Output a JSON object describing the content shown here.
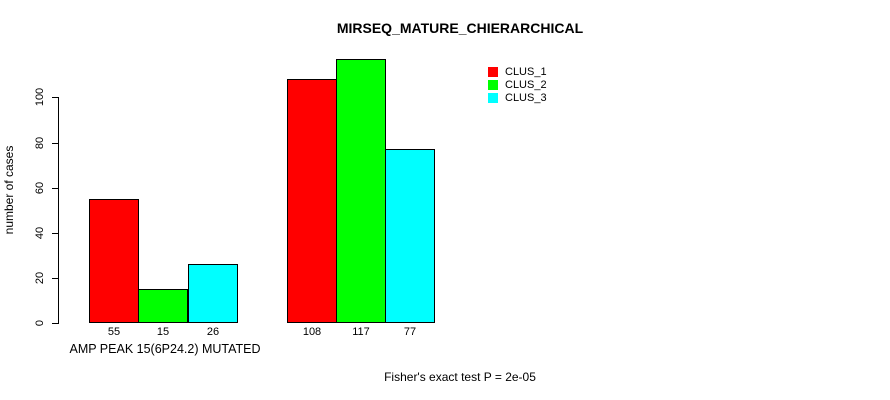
{
  "chart_data": {
    "type": "bar",
    "title": "MIRSEQ_MATURE_CHIERARCHICAL",
    "ylabel": "number of cases",
    "xlabel": "AMP PEAK 15(6P24.2) MUTATED",
    "ylim": [
      0,
      100
    ],
    "yticks": [
      0,
      20,
      40,
      60,
      80,
      100
    ],
    "grid": false,
    "legend_position": "top-right",
    "n_groups": 2,
    "series": [
      {
        "name": "CLUS_1",
        "color": "#ff0000",
        "values": [
          55,
          108
        ]
      },
      {
        "name": "CLUS_2",
        "color": "#00ff00",
        "values": [
          15,
          117
        ]
      },
      {
        "name": "CLUS_3",
        "color": "#00ffff",
        "values": [
          26,
          77
        ]
      }
    ],
    "bar_value_labels": [
      [
        "55",
        "15",
        "26"
      ],
      [
        "108",
        "117",
        "77"
      ]
    ],
    "annotation": "Fisher's exact test P = 2e-05"
  },
  "colors": {
    "background": "#ffffff",
    "axis": "#000000",
    "text": "#000000"
  }
}
